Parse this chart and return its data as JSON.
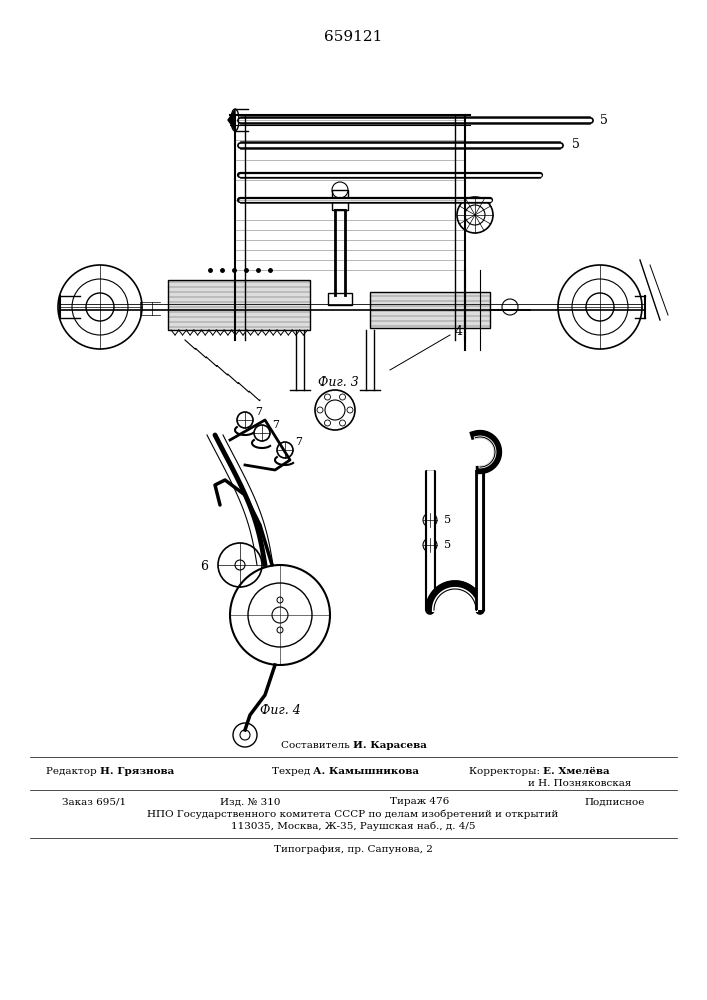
{
  "patent_number": "659121",
  "fig3_label": "Фиг. 3",
  "fig4_label": "Фиг. 4",
  "compositor_line": "Составитель И. Карасева",
  "editor_line": "Редактор Н. Грязнова",
  "techred_line": "Техред А. Камышникова",
  "correctors_line": "Корректоры: Е. Хмелёва",
  "correctors_line2": "и Н. Позняковская",
  "order_line": "Заказ 695/1",
  "edition_line": "Изд. № 310",
  "tirazh_line": "Тираж 476",
  "podpisnoe": "Подписное",
  "npo_line": "НПО Государственного комитета СССР по делам изобретений и открытий",
  "address_line": "113035, Москва, Ж-35, Раушская наб., д. 4/5",
  "tipografia_line": "Типография, пр. Сапунова, 2",
  "bg_color": "#ffffff",
  "line_color": "#000000"
}
